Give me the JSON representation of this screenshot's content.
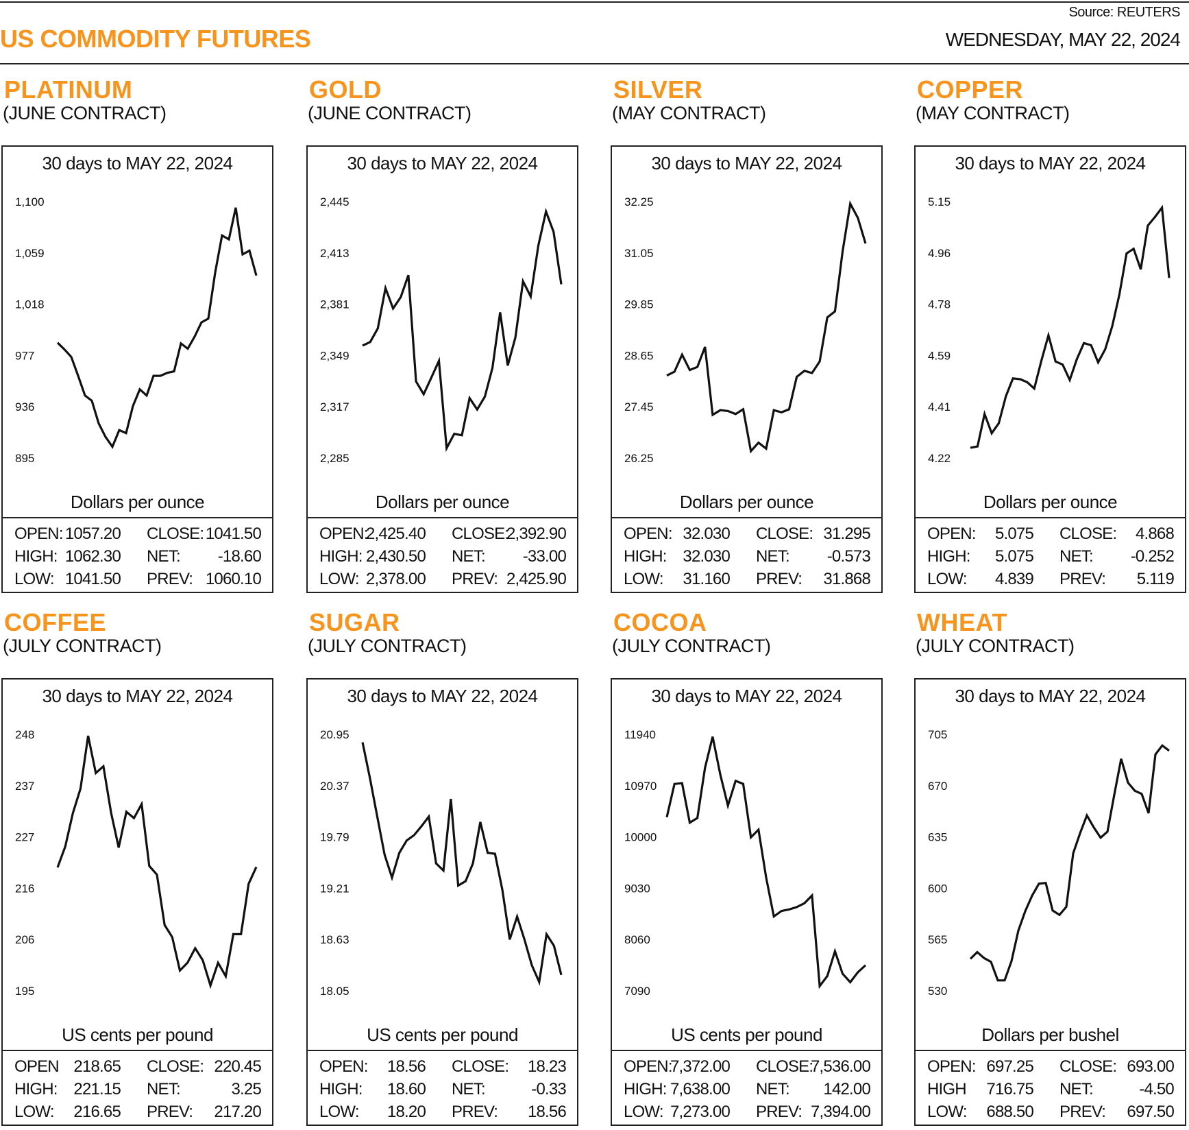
{
  "header": {
    "title": "US COMMODITY FUTURES",
    "source": "Source: REUTERS",
    "date": "WEDNESDAY, MAY 22, 2024"
  },
  "colors": {
    "accent": "#F7941D",
    "line": "#111111",
    "border": "#222222"
  },
  "panels": [
    {
      "name": "PLATINUM",
      "contract": "(JUNE CONTRACT)",
      "chart_title": "30 days to MAY 22, 2024",
      "unit": "Dollars per ounce",
      "stats": [
        [
          "OPEN:",
          "1057.20",
          "CLOSE:",
          "1041.50"
        ],
        [
          "HIGH:",
          "1062.30",
          "NET:",
          "-18.60"
        ],
        [
          "LOW:",
          "1041.50",
          "PREV:",
          "1060.10"
        ]
      ]
    },
    {
      "name": "GOLD",
      "contract": "(JUNE CONTRACT)",
      "chart_title": "30 days to MAY 22, 2024",
      "unit": "Dollars per ounce",
      "stats": [
        [
          "OPEN:",
          "2,425.40",
          "CLOSE:",
          "2,392.90"
        ],
        [
          "HIGH:",
          "2,430.50",
          "NET:",
          "-33.00"
        ],
        [
          "LOW:",
          "2,378.00",
          "PREV:",
          "2,425.90"
        ]
      ]
    },
    {
      "name": "SILVER",
      "contract": "(MAY CONTRACT)",
      "chart_title": "30 days to MAY 22, 2024",
      "unit": "Dollars per ounce",
      "stats": [
        [
          "OPEN:",
          "32.030",
          "CLOSE:",
          "31.295"
        ],
        [
          "HIGH:",
          "32.030",
          "NET:",
          "-0.573"
        ],
        [
          "LOW:",
          "31.160",
          "PREV:",
          "31.868"
        ]
      ]
    },
    {
      "name": "COPPER",
      "contract": "(MAY CONTRACT)",
      "chart_title": "30 days to MAY 22, 2024",
      "unit": "Dollars per ounce",
      "stats": [
        [
          "OPEN:",
          "5.075",
          "CLOSE:",
          "4.868"
        ],
        [
          "HIGH:",
          "5.075",
          "NET:",
          "-0.252"
        ],
        [
          "LOW:",
          "4.839",
          "PREV:",
          "5.119"
        ]
      ]
    },
    {
      "name": "COFFEE",
      "contract": "(JULY CONTRACT)",
      "chart_title": "30 days to MAY 22, 2024",
      "unit": "US cents per pound",
      "stats": [
        [
          "OPEN",
          "218.65",
          "CLOSE:",
          "220.45"
        ],
        [
          "HIGH:",
          "221.15",
          "NET:",
          "3.25"
        ],
        [
          "LOW:",
          "216.65",
          "PREV:",
          "217.20"
        ]
      ]
    },
    {
      "name": "SUGAR",
      "contract": "(JULY CONTRACT)",
      "chart_title": "30 days to MAY 22, 2024",
      "unit": "US cents per pound",
      "stats": [
        [
          "OPEN:",
          "18.56",
          "CLOSE:",
          "18.23"
        ],
        [
          "HIGH:",
          "18.60",
          "NET:",
          "-0.33"
        ],
        [
          "LOW:",
          "18.20",
          "PREV:",
          "18.56"
        ]
      ]
    },
    {
      "name": "COCOA",
      "contract": "(JULY CONTRACT)",
      "chart_title": "30 days to MAY 22, 2024",
      "unit": "US cents per pound",
      "stats": [
        [
          "OPEN:",
          "7,372.00",
          "CLOSE:",
          "7,536.00"
        ],
        [
          "HIGH:",
          "7,638.00",
          "NET:",
          "142.00"
        ],
        [
          "LOW:",
          "7,273.00",
          "PREV:",
          "7,394.00"
        ]
      ]
    },
    {
      "name": "WHEAT",
      "contract": "(JULY CONTRACT)",
      "chart_title": "30 days to MAY 22, 2024",
      "unit": "Dollars per bushel",
      "stats": [
        [
          "OPEN:",
          "697.25",
          "CLOSE:",
          "693.00"
        ],
        [
          "HIGH",
          "716.75",
          "NET:",
          "-4.50"
        ],
        [
          "LOW:",
          "688.50",
          "PREV:",
          "697.50"
        ]
      ]
    }
  ],
  "chart_data": [
    {
      "type": "line",
      "title": "30 days to MAY 22, 2024",
      "ylabel": "Dollars per ounce",
      "ylim": [
        895,
        1100
      ],
      "grid": false,
      "yticks": [
        "1,100",
        "1,059",
        "1,018",
        "977",
        "936",
        "895"
      ],
      "values": [
        987.2,
        981.8,
        975.8,
        960.7,
        945,
        940.8,
        922.7,
        911.9,
        904,
        917.3,
        914.9,
        936.6,
        949.9,
        945,
        960.7,
        960.7,
        963.1,
        964.3,
        986.6,
        982.4,
        992.1,
        1003.5,
        1006.5,
        1043.3,
        1072.9,
        1069.8,
        1095.2,
        1057.8,
        1060.8,
        1040.9
      ]
    },
    {
      "type": "line",
      "title": "30 days to MAY 22, 2024",
      "ylabel": "Dollars per ounce",
      "ylim": [
        2285,
        2445
      ],
      "grid": false,
      "yticks": [
        "2,445",
        "2,413",
        "2,381",
        "2,349",
        "2,317",
        "2,285"
      ],
      "values": [
        2355.1,
        2357.4,
        2365.9,
        2391,
        2378.3,
        2385.4,
        2399.1,
        2332.8,
        2324.8,
        2335.2,
        2345.6,
        2291.1,
        2300.1,
        2299.2,
        2322.4,
        2315.3,
        2323.3,
        2341.3,
        2375.9,
        2342.7,
        2360.3,
        2395.3,
        2385.8,
        2417.5,
        2438.8,
        2426.1,
        2393.4
      ]
    },
    {
      "type": "line",
      "title": "30 days to MAY 22, 2024",
      "ylabel": "Dollars per ounce",
      "ylim": [
        26.25,
        32.25
      ],
      "grid": false,
      "yticks": [
        "32.25",
        "31.05",
        "29.85",
        "28.65",
        "27.45",
        "26.25"
      ],
      "values": [
        28.18,
        28.27,
        28.67,
        28.31,
        28.38,
        28.85,
        27.26,
        27.37,
        27.35,
        27.28,
        27.39,
        26.41,
        26.61,
        26.47,
        27.37,
        27.32,
        27.39,
        28.15,
        28.29,
        28.24,
        28.51,
        29.54,
        29.68,
        31.08,
        32.2,
        31.87,
        31.27
      ]
    },
    {
      "type": "line",
      "title": "30 days to MAY 22, 2024",
      "ylabel": "Dollars per ounce",
      "ylim": [
        4.22,
        5.15
      ],
      "grid": false,
      "yticks": [
        "5.15",
        "4.96",
        "4.78",
        "4.59",
        "4.41",
        "4.22"
      ],
      "values": [
        4.257,
        4.262,
        4.38,
        4.31,
        4.346,
        4.444,
        4.509,
        4.506,
        4.495,
        4.472,
        4.573,
        4.665,
        4.57,
        4.559,
        4.503,
        4.579,
        4.637,
        4.629,
        4.567,
        4.615,
        4.699,
        4.814,
        4.962,
        4.979,
        4.904,
        5.063,
        5.094,
        5.128,
        4.873
      ]
    },
    {
      "type": "line",
      "title": "30 days to MAY 22, 2024",
      "ylabel": "US cents per pound",
      "ylim": [
        195,
        248
      ],
      "grid": false,
      "yticks": [
        "248",
        "237",
        "227",
        "216",
        "206",
        "195"
      ],
      "values": [
        220.5,
        224.8,
        231.7,
        236.8,
        247.7,
        240,
        241.4,
        231.8,
        224.6,
        232,
        230.7,
        233.6,
        220.8,
        219,
        208.6,
        206.1,
        199.2,
        200.8,
        203.8,
        201.3,
        196.1,
        200.8,
        198,
        206.7,
        206.7,
        217.1,
        220.6
      ]
    },
    {
      "type": "line",
      "title": "30 days to MAY 22, 2024",
      "ylabel": "US cents per pound",
      "ylim": [
        18.05,
        20.95
      ],
      "grid": false,
      "yticks": [
        "20.95",
        "20.37",
        "19.79",
        "19.21",
        "18.63",
        "18.05"
      ],
      "values": [
        20.86,
        20.46,
        20.02,
        19.59,
        19.33,
        19.61,
        19.75,
        19.81,
        19.91,
        20.02,
        19.49,
        19.41,
        20.22,
        19.24,
        19.29,
        19.49,
        19.96,
        19.61,
        19.6,
        19.19,
        18.63,
        18.89,
        18.63,
        18.34,
        18.15,
        18.69,
        18.56,
        18.23
      ]
    },
    {
      "type": "line",
      "title": "30 days to MAY 22, 2024",
      "ylabel": "US cents per pound",
      "ylim": [
        7090,
        11940
      ],
      "grid": false,
      "yticks": [
        "11940",
        "10970",
        "10000",
        "9030",
        "8060",
        "7090"
      ],
      "values": [
        10372,
        11002,
        11017,
        10270,
        10358,
        11310,
        11896,
        11178,
        10592,
        11061,
        11002,
        9992,
        10138,
        9230,
        8497,
        8600,
        8629,
        8673,
        8746,
        8893,
        7179,
        7369,
        7838,
        7413,
        7252,
        7442,
        7574
      ]
    },
    {
      "type": "line",
      "title": "30 days to MAY 22, 2024",
      "ylabel": "Dollars per bushel",
      "ylim": [
        530,
        705
      ],
      "grid": false,
      "yticks": [
        "705",
        "670",
        "635",
        "600",
        "565",
        "530"
      ],
      "values": [
        551.8,
        556.4,
        552.3,
        549.8,
        537.1,
        537.1,
        550.3,
        571.1,
        584.3,
        594.9,
        603.1,
        603.6,
        584.8,
        581.8,
        587.3,
        623.8,
        637.5,
        649.7,
        641.6,
        634.5,
        638.6,
        663.9,
        688.3,
        672,
        666.5,
        664.4,
        651.2,
        691.3,
        697.4,
        693.8
      ]
    }
  ]
}
